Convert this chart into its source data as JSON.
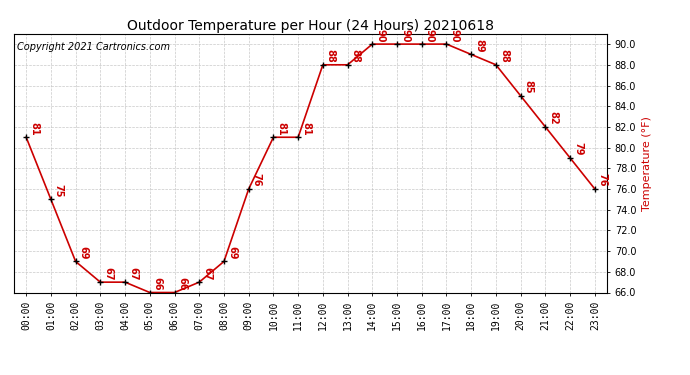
{
  "title": "Outdoor Temperature per Hour (24 Hours) 20210618",
  "copyright_text": "Copyright 2021 Cartronics.com",
  "ylabel": "Temperature (°F)",
  "hours": [
    "00:00",
    "01:00",
    "02:00",
    "03:00",
    "04:00",
    "05:00",
    "06:00",
    "07:00",
    "08:00",
    "09:00",
    "10:00",
    "11:00",
    "12:00",
    "13:00",
    "14:00",
    "15:00",
    "16:00",
    "17:00",
    "18:00",
    "19:00",
    "20:00",
    "21:00",
    "22:00",
    "23:00"
  ],
  "temps": [
    81,
    75,
    69,
    67,
    67,
    66,
    66,
    67,
    69,
    76,
    81,
    81,
    88,
    88,
    90,
    90,
    90,
    90,
    89,
    88,
    85,
    82,
    79,
    76
  ],
  "ylim_min": 66.0,
  "ylim_max": 91.0,
  "yticks": [
    66.0,
    68.0,
    70.0,
    72.0,
    74.0,
    76.0,
    78.0,
    80.0,
    82.0,
    84.0,
    86.0,
    88.0,
    90.0
  ],
  "line_color": "#cc0000",
  "marker_color": "#000000",
  "label_color": "#cc0000",
  "bg_color": "#ffffff",
  "grid_color": "#bbbbbb",
  "title_color": "#000000",
  "copyright_color": "#000000",
  "ylabel_color": "#cc0000",
  "title_fontsize": 10,
  "tick_fontsize": 7,
  "label_fontsize": 7,
  "copyright_fontsize": 7,
  "ylabel_fontsize": 8
}
